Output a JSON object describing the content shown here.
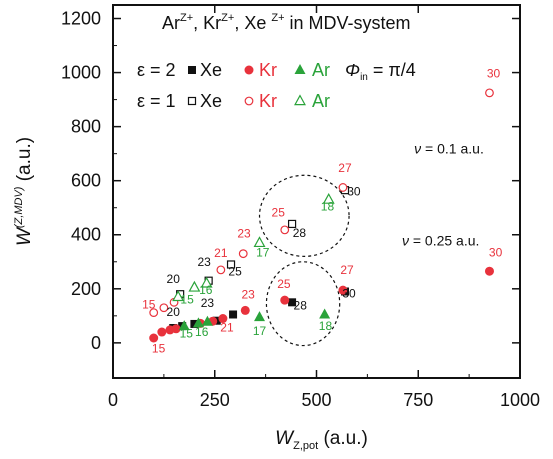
{
  "chart_data": {
    "type": "scatter",
    "title": "Ar<sup>Z+</sup>, Kr<sup>Z+</sup>, Xe <sup>Z+</sup> in MDV-system",
    "title_parts": [
      "Ar",
      "Z+",
      ", Kr",
      "Z+",
      ", Xe ",
      "Z+",
      " in MDV-system"
    ],
    "xlabel": "W",
    "xlabel_sub": "Z,pot",
    "xlabel_unit": " (a.u.)",
    "ylabel": "W",
    "ylabel_sup": "(Z,MDV)",
    "ylabel_unit": " (a.u.)",
    "xlim": [
      0,
      1000
    ],
    "ylim": [
      -130,
      1250
    ],
    "x_ticks": [
      0,
      250,
      500,
      750,
      1000
    ],
    "x_tick_labels": [
      "0",
      "250",
      "500",
      "750",
      "1000"
    ],
    "y_ticks": [
      0,
      200,
      400,
      600,
      800,
      1000,
      1200
    ],
    "y_tick_labels": [
      "0",
      "200",
      "400",
      "600",
      "800",
      "1000",
      "1200"
    ],
    "grid": false,
    "legend": {
      "placement": "top-left",
      "phi_label": "Φ",
      "phi_sub": "in",
      "phi_value": " = π/4",
      "rows": [
        {
          "eps": "ε = 2",
          "entries": [
            {
              "marker": "filled-square",
              "color": "#111111",
              "label": "Xe"
            },
            {
              "marker": "filled-circle",
              "color": "#e8323c",
              "label": "Kr"
            },
            {
              "marker": "filled-triangle",
              "color": "#2aa33a",
              "label": "Ar"
            }
          ]
        },
        {
          "eps": "ε = 1",
          "entries": [
            {
              "marker": "open-square",
              "color": "#111111",
              "label": "Xe"
            },
            {
              "marker": "open-circle",
              "color": "#e8323c",
              "label": "Kr"
            },
            {
              "marker": "open-triangle",
              "color": "#2aa33a",
              "label": "Ar"
            }
          ]
        }
      ]
    },
    "annotations": [
      {
        "text": "ν = 0.1 a.u.",
        "x": 740,
        "y": 700
      },
      {
        "text": "ν = 0.25 a.u.",
        "x": 710,
        "y": 360
      }
    ],
    "colors": {
      "Xe": "#111111",
      "Kr": "#e8323c",
      "Ar": "#2aa33a"
    },
    "series": [
      {
        "element": "Xe",
        "epsilon": 2,
        "marker": "filled-square",
        "points": [
          {
            "x": 148,
            "y": 55
          },
          {
            "x": 170,
            "y": 62
          },
          {
            "x": 200,
            "y": 70
          },
          {
            "x": 255,
            "y": 82
          },
          {
            "x": 295,
            "y": 105
          },
          {
            "x": 440,
            "y": 150
          },
          {
            "x": 570,
            "y": 190
          }
        ]
      },
      {
        "element": "Kr",
        "epsilon": 2,
        "marker": "filled-circle",
        "points": [
          {
            "x": 100,
            "y": 18
          },
          {
            "x": 120,
            "y": 40
          },
          {
            "x": 140,
            "y": 48
          },
          {
            "x": 155,
            "y": 52
          },
          {
            "x": 215,
            "y": 72
          },
          {
            "x": 245,
            "y": 80
          },
          {
            "x": 270,
            "y": 90
          },
          {
            "x": 325,
            "y": 120
          },
          {
            "x": 422,
            "y": 158
          },
          {
            "x": 565,
            "y": 195
          },
          {
            "x": 925,
            "y": 265
          }
        ]
      },
      {
        "element": "Ar",
        "epsilon": 2,
        "marker": "filled-triangle",
        "points": [
          {
            "x": 175,
            "y": 62
          },
          {
            "x": 210,
            "y": 72
          },
          {
            "x": 232,
            "y": 78
          },
          {
            "x": 360,
            "y": 95
          },
          {
            "x": 520,
            "y": 105
          }
        ]
      },
      {
        "element": "Xe",
        "epsilon": 1,
        "marker": "open-square",
        "points": [
          {
            "x": 165,
            "y": 180
          },
          {
            "x": 235,
            "y": 230
          },
          {
            "x": 290,
            "y": 290
          },
          {
            "x": 440,
            "y": 440
          },
          {
            "x": 570,
            "y": 565
          }
        ]
      },
      {
        "element": "Kr",
        "epsilon": 1,
        "marker": "open-circle",
        "points": [
          {
            "x": 100,
            "y": 112
          },
          {
            "x": 125,
            "y": 130
          },
          {
            "x": 150,
            "y": 150
          },
          {
            "x": 265,
            "y": 270
          },
          {
            "x": 320,
            "y": 330
          },
          {
            "x": 422,
            "y": 418
          },
          {
            "x": 565,
            "y": 575
          },
          {
            "x": 925,
            "y": 925
          }
        ]
      },
      {
        "element": "Ar",
        "epsilon": 1,
        "marker": "open-triangle",
        "points": [
          {
            "x": 160,
            "y": 170
          },
          {
            "x": 200,
            "y": 205
          },
          {
            "x": 230,
            "y": 220
          },
          {
            "x": 360,
            "y": 370
          },
          {
            "x": 530,
            "y": 530
          }
        ]
      }
    ],
    "point_labels": [
      {
        "text": "15",
        "color": "#e8323c",
        "x": 112,
        "y": -35
      },
      {
        "text": "15",
        "color": "#2aa33a",
        "x": 180,
        "y": 20
      },
      {
        "text": "16",
        "color": "#2aa33a",
        "x": 218,
        "y": 26
      },
      {
        "text": "21",
        "color": "#e8323c",
        "x": 280,
        "y": 42
      },
      {
        "text": "17",
        "color": "#2aa33a",
        "x": 360,
        "y": 30
      },
      {
        "text": "20",
        "color": "#111111",
        "x": 148,
        "y": 100
      },
      {
        "text": "23",
        "color": "#111111",
        "x": 232,
        "y": 132
      },
      {
        "text": "23",
        "color": "#e8323c",
        "x": 332,
        "y": 164
      },
      {
        "text": "25",
        "color": "#e8323c",
        "x": 420,
        "y": 203
      },
      {
        "text": "28",
        "color": "#111111",
        "x": 460,
        "y": 124
      },
      {
        "text": "27",
        "color": "#e8323c",
        "x": 575,
        "y": 255
      },
      {
        "text": "30",
        "color": "#111111",
        "x": 580,
        "y": 167
      },
      {
        "text": "18",
        "color": "#2aa33a",
        "x": 522,
        "y": 48
      },
      {
        "text": "30",
        "color": "#e8323c",
        "x": 940,
        "y": 320
      },
      {
        "text": "15",
        "color": "#e8323c",
        "x": 88,
        "y": 128
      },
      {
        "text": "15",
        "color": "#2aa33a",
        "x": 182,
        "y": 145
      },
      {
        "text": "16",
        "color": "#2aa33a",
        "x": 228,
        "y": 180
      },
      {
        "text": "20",
        "color": "#111111",
        "x": 148,
        "y": 222
      },
      {
        "text": "23",
        "color": "#111111",
        "x": 224,
        "y": 285
      },
      {
        "text": "25",
        "color": "#111111",
        "x": 300,
        "y": 250
      },
      {
        "text": "21",
        "color": "#e8323c",
        "x": 265,
        "y": 317
      },
      {
        "text": "23",
        "color": "#e8323c",
        "x": 322,
        "y": 390
      },
      {
        "text": "17",
        "color": "#2aa33a",
        "x": 368,
        "y": 320
      },
      {
        "text": "25",
        "color": "#e8323c",
        "x": 406,
        "y": 468
      },
      {
        "text": "28",
        "color": "#111111",
        "x": 458,
        "y": 392
      },
      {
        "text": "27",
        "color": "#e8323c",
        "x": 570,
        "y": 632
      },
      {
        "text": "30",
        "color": "#111111",
        "x": 592,
        "y": 545
      },
      {
        "text": "18",
        "color": "#2aa33a",
        "x": 527,
        "y": 490
      },
      {
        "text": "30",
        "color": "#e8323c",
        "x": 935,
        "y": 982
      }
    ],
    "highlight_ellipses": [
      {
        "cx": 470,
        "cy": 470,
        "rx": 110,
        "ry": 150
      },
      {
        "cx": 467,
        "cy": 145,
        "rx": 90,
        "ry": 155
      }
    ]
  }
}
